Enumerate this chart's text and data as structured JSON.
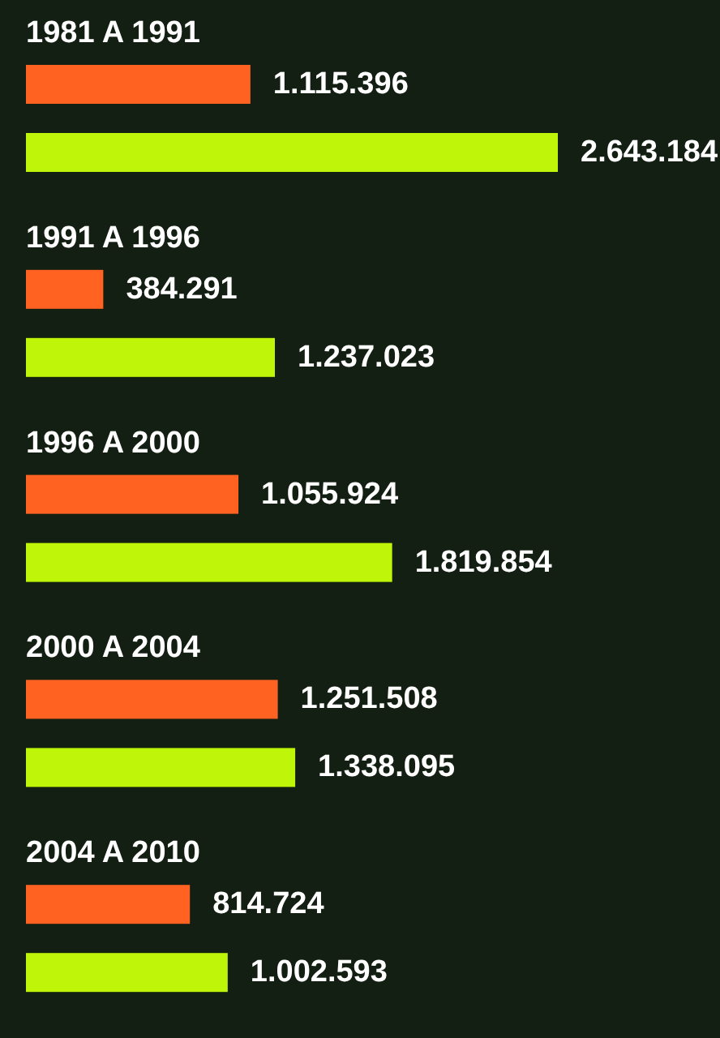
{
  "chart_data": {
    "type": "bar",
    "orientation": "horizontal",
    "categories": [
      "1981 A 1991",
      "1991 A 1996",
      "1996 A 2000",
      "2000 A 2004",
      "2004 A 2010"
    ],
    "series": [
      {
        "color": "#ff6221",
        "values": [
          1115396,
          384291,
          1055924,
          1251508,
          814724
        ],
        "value_labels": [
          "1.115.396",
          "384.291",
          "1.055.924",
          "1.251.508",
          "814.724"
        ]
      },
      {
        "color": "#bff509",
        "values": [
          2643184,
          1237023,
          1819854,
          1338095,
          1002593
        ],
        "value_labels": [
          "2.643.184",
          "1.237.023",
          "1.819.854",
          "1.338.095",
          "1.002.593"
        ]
      }
    ]
  }
}
